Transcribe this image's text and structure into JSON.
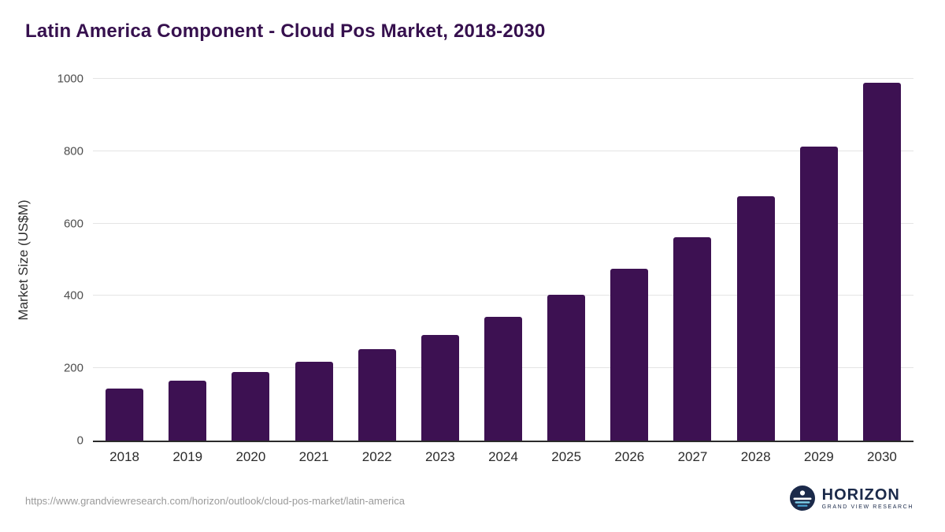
{
  "title": "Latin America Component - Cloud Pos Market, 2018-2030",
  "chart_data": {
    "type": "bar",
    "title": "Latin America Component - Cloud Pos Market, 2018-2030",
    "xlabel": "",
    "ylabel": "Market Size (US$M)",
    "categories": [
      "2018",
      "2019",
      "2020",
      "2021",
      "2022",
      "2023",
      "2024",
      "2025",
      "2026",
      "2027",
      "2028",
      "2029",
      "2030"
    ],
    "values": [
      143,
      165,
      190,
      217,
      252,
      293,
      342,
      402,
      475,
      562,
      675,
      812,
      990
    ],
    "ylim": [
      0,
      1000
    ],
    "yticks": [
      0,
      200,
      400,
      600,
      800,
      1000
    ],
    "grid": true,
    "legend": "none",
    "bar_color": "#3d1152"
  },
  "footer": {
    "source_url": "https://www.grandviewresearch.com/horizon/outlook/cloud-pos-market/latin-america",
    "logo_text": "HORIZON",
    "logo_subtext": "GRAND VIEW RESEARCH"
  },
  "colors": {
    "title_text": "#36104e",
    "bar": "#3d1152",
    "axis_line": "#2b2b2b",
    "gridline": "#e4e4e4",
    "tick_text": "#4d4d4d",
    "logo_navy": "#1b2a4a",
    "logo_light_blue": "#7fd0ea"
  }
}
